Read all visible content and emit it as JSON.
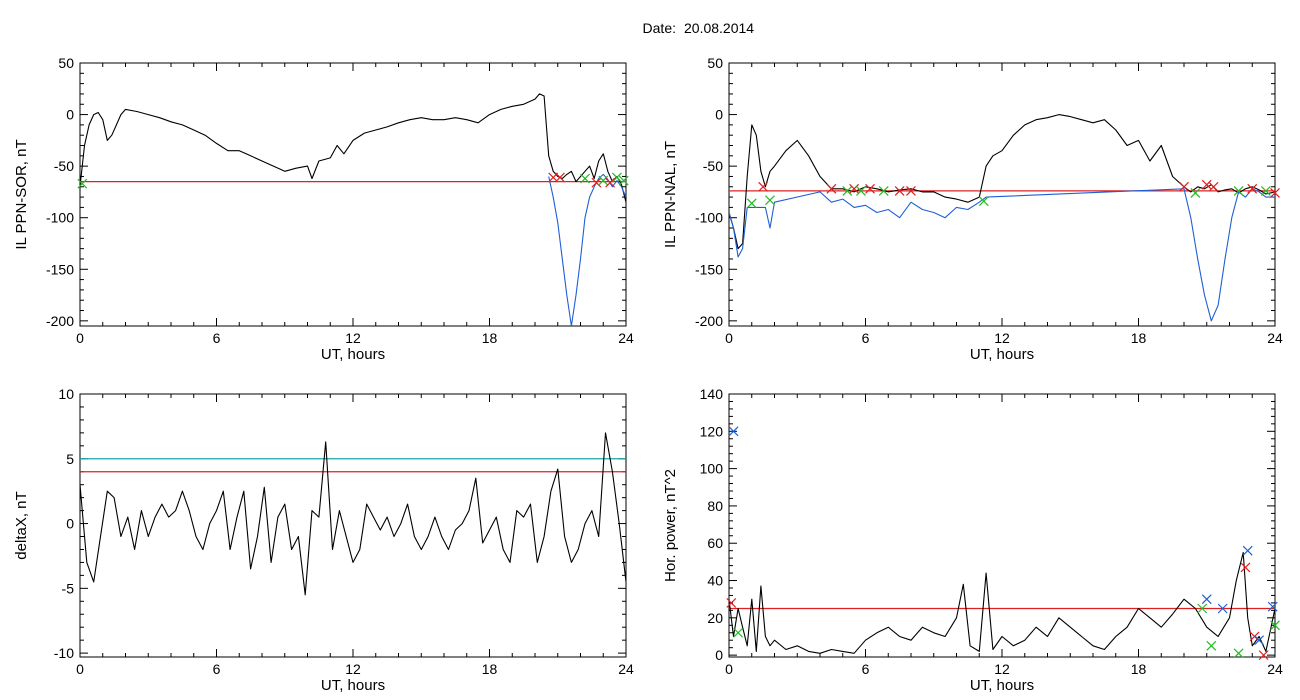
{
  "figure": {
    "date_label": "Date:",
    "date_value": "20.08.2014"
  },
  "colors": {
    "trace": "#000000",
    "blue_trace": "#1f5fd6",
    "threshold_red": "#e02020",
    "threshold_teal": "#1aa5a5",
    "marker_red": "#e02020",
    "marker_green": "#22bb22",
    "marker_blue": "#2255ee"
  },
  "chart_data": [
    {
      "id": "ppn-sor",
      "type": "line",
      "title": "",
      "xlabel": "UT, hours",
      "ylabel": "IL PPN-SOR, nT",
      "xlim": [
        0,
        24
      ],
      "ylim": [
        -205,
        50
      ],
      "xticks": [
        0,
        6,
        12,
        18,
        24
      ],
      "yticks": [
        50,
        0,
        -50,
        -100,
        -150,
        -200
      ],
      "series": [
        {
          "color": "black",
          "x": [
            0,
            0.2,
            0.4,
            0.6,
            0.8,
            1.0,
            1.2,
            1.4,
            1.6,
            1.8,
            2.0,
            2.5,
            3,
            3.5,
            4,
            4.5,
            5,
            5.5,
            6,
            6.5,
            7,
            7.5,
            8,
            8.5,
            9,
            9.5,
            10,
            10.2,
            10.5,
            11,
            11.3,
            11.6,
            12,
            12.5,
            13,
            13.5,
            14,
            14.5,
            15,
            15.5,
            16,
            16.5,
            17,
            17.5,
            18,
            18.5,
            19,
            19.5,
            20,
            20.2,
            20.4,
            20.6,
            20.8,
            21.0,
            21.2,
            21.4,
            21.6,
            21.8,
            22.0,
            22.2,
            22.4,
            22.6,
            22.8,
            23.0,
            23.2,
            23.4,
            23.6,
            23.8,
            24.0
          ],
          "y": [
            -70,
            -30,
            -10,
            0,
            2,
            -5,
            -25,
            -20,
            -10,
            0,
            5,
            3,
            0,
            -3,
            -7,
            -10,
            -15,
            -20,
            -28,
            -35,
            -35,
            -40,
            -45,
            -50,
            -55,
            -52,
            -50,
            -62,
            -45,
            -42,
            -30,
            -38,
            -25,
            -18,
            -15,
            -12,
            -8,
            -5,
            -3,
            -5,
            -5,
            -3,
            -5,
            -8,
            0,
            5,
            8,
            10,
            15,
            20,
            18,
            -40,
            -55,
            -60,
            -62,
            -58,
            -55,
            -65,
            -60,
            -55,
            -50,
            -62,
            -45,
            -38,
            -55,
            -65,
            -60,
            -68,
            -85
          ]
        },
        {
          "color": "blue",
          "x": [
            20.6,
            20.8,
            21.0,
            21.2,
            21.4,
            21.6,
            21.8,
            22.0,
            22.2,
            22.4,
            22.6,
            22.8,
            23.0,
            23.2,
            23.4,
            23.6,
            23.8,
            24.0
          ],
          "y": [
            -60,
            -80,
            -105,
            -140,
            -175,
            -205,
            -175,
            -140,
            -100,
            -80,
            -70,
            -62,
            -58,
            -63,
            -70,
            -64,
            -70,
            -80
          ]
        }
      ],
      "thresholds": [
        {
          "y": -65,
          "color": "red"
        }
      ],
      "markers": [
        {
          "x": 0.1,
          "y": -67,
          "color": "green"
        },
        {
          "x": 20.8,
          "y": -61,
          "color": "red"
        },
        {
          "x": 21.1,
          "y": -61,
          "color": "red"
        },
        {
          "x": 22.2,
          "y": -62,
          "color": "green"
        },
        {
          "x": 22.7,
          "y": -66,
          "color": "red"
        },
        {
          "x": 23.0,
          "y": -64,
          "color": "green"
        },
        {
          "x": 23.3,
          "y": -66,
          "color": "red"
        },
        {
          "x": 23.6,
          "y": -61,
          "color": "green"
        },
        {
          "x": 23.9,
          "y": -64,
          "color": "green"
        }
      ]
    },
    {
      "id": "ppn-nal",
      "type": "line",
      "title": "",
      "xlabel": "UT, hours",
      "ylabel": "IL PPN-NAL, nT",
      "xlim": [
        0,
        24
      ],
      "ylim": [
        -205,
        50
      ],
      "xticks": [
        0,
        6,
        12,
        18,
        24
      ],
      "yticks": [
        50,
        0,
        -50,
        -100,
        -150,
        -200
      ],
      "series": [
        {
          "color": "black",
          "x": [
            0,
            0.2,
            0.4,
            0.6,
            0.8,
            1.0,
            1.2,
            1.4,
            1.6,
            1.8,
            2.0,
            2.5,
            3.0,
            3.5,
            4.0,
            4.5,
            5.0,
            5.5,
            6.0,
            6.5,
            7.0,
            7.5,
            8.0,
            8.5,
            9.0,
            9.5,
            10.0,
            10.5,
            11.0,
            11.3,
            11.6,
            12.0,
            12.5,
            13.0,
            13.5,
            14.0,
            14.5,
            15.0,
            15.5,
            16.0,
            16.5,
            17.0,
            17.5,
            18.0,
            18.5,
            19.0,
            19.5,
            20.0,
            20.3,
            20.6,
            20.9,
            21.2,
            21.5,
            21.8,
            22.1,
            22.4,
            22.7,
            23.0,
            23.3,
            23.6,
            24.0
          ],
          "y": [
            -95,
            -110,
            -130,
            -125,
            -60,
            -10,
            -20,
            -55,
            -70,
            -55,
            -50,
            -35,
            -25,
            -40,
            -60,
            -72,
            -72,
            -75,
            -70,
            -72,
            -75,
            -73,
            -72,
            -75,
            -75,
            -80,
            -82,
            -85,
            -80,
            -50,
            -40,
            -35,
            -20,
            -10,
            -5,
            -3,
            0,
            -2,
            -5,
            -8,
            -5,
            -15,
            -30,
            -25,
            -45,
            -30,
            -60,
            -70,
            -75,
            -70,
            -72,
            -68,
            -75,
            -73,
            -72,
            -76,
            -72,
            -70,
            -73,
            -77,
            -75
          ]
        },
        {
          "color": "blue",
          "x": [
            0,
            0.2,
            0.4,
            0.6,
            0.8,
            1.6,
            1.8,
            2.0,
            4.0,
            4.5,
            5.0,
            5.5,
            6.0,
            6.5,
            7.0,
            7.5,
            8.0,
            8.5,
            9.0,
            9.5,
            10.0,
            10.5,
            11.0,
            11.3,
            20.0,
            20.3,
            20.6,
            20.9,
            21.2,
            21.5,
            21.8,
            22.1,
            22.4,
            22.7,
            23.0,
            23.3,
            23.6,
            24.0
          ],
          "y": [
            -95,
            -110,
            -138,
            -130,
            -90,
            -90,
            -110,
            -85,
            -75,
            -85,
            -82,
            -90,
            -88,
            -95,
            -92,
            -100,
            -85,
            -92,
            -95,
            -100,
            -90,
            -92,
            -85,
            -80,
            -72,
            -100,
            -140,
            -175,
            -200,
            -185,
            -140,
            -100,
            -75,
            -80,
            -72,
            -75,
            -80,
            -80
          ]
        }
      ],
      "thresholds": [
        {
          "y": -74,
          "color": "red"
        }
      ],
      "markers": [
        {
          "x": 1.0,
          "y": -86,
          "color": "green"
        },
        {
          "x": 1.5,
          "y": -70,
          "color": "red"
        },
        {
          "x": 1.8,
          "y": -83,
          "color": "green"
        },
        {
          "x": 4.5,
          "y": -72,
          "color": "red"
        },
        {
          "x": 5.2,
          "y": -74,
          "color": "green"
        },
        {
          "x": 5.5,
          "y": -72,
          "color": "red"
        },
        {
          "x": 5.8,
          "y": -74,
          "color": "green"
        },
        {
          "x": 6.2,
          "y": -72,
          "color": "red"
        },
        {
          "x": 6.8,
          "y": -74,
          "color": "green"
        },
        {
          "x": 7.5,
          "y": -74,
          "color": "red"
        },
        {
          "x": 8.0,
          "y": -74,
          "color": "red"
        },
        {
          "x": 11.2,
          "y": -84,
          "color": "green"
        },
        {
          "x": 20.0,
          "y": -70,
          "color": "red"
        },
        {
          "x": 20.5,
          "y": -76,
          "color": "green"
        },
        {
          "x": 21.0,
          "y": -68,
          "color": "red"
        },
        {
          "x": 21.3,
          "y": -70,
          "color": "red"
        },
        {
          "x": 22.4,
          "y": -74,
          "color": "green"
        },
        {
          "x": 23.0,
          "y": -72,
          "color": "red"
        },
        {
          "x": 23.6,
          "y": -74,
          "color": "green"
        },
        {
          "x": 24.0,
          "y": -76,
          "color": "red"
        }
      ]
    },
    {
      "id": "deltax",
      "type": "line",
      "title": "",
      "xlabel": "UT, hours",
      "ylabel": "deltaX, nT",
      "xlim": [
        0,
        24
      ],
      "ylim": [
        -10.3,
        10
      ],
      "xticks": [
        0,
        6,
        12,
        18,
        24
      ],
      "yticks": [
        10,
        5,
        0,
        -5,
        -10
      ],
      "series": [
        {
          "color": "black",
          "x": [
            0,
            0.3,
            0.6,
            0.9,
            1.2,
            1.5,
            1.8,
            2.1,
            2.4,
            2.7,
            3.0,
            3.3,
            3.6,
            3.9,
            4.2,
            4.5,
            4.8,
            5.1,
            5.4,
            5.7,
            6.0,
            6.3,
            6.6,
            6.9,
            7.2,
            7.5,
            7.8,
            8.1,
            8.4,
            8.7,
            9.0,
            9.3,
            9.6,
            9.9,
            10.2,
            10.5,
            10.8,
            11.1,
            11.4,
            11.7,
            12.0,
            12.3,
            12.6,
            12.9,
            13.2,
            13.5,
            13.8,
            14.1,
            14.4,
            14.7,
            15.0,
            15.3,
            15.6,
            15.9,
            16.2,
            16.5,
            16.8,
            17.1,
            17.4,
            17.7,
            18.0,
            18.3,
            18.6,
            18.9,
            19.2,
            19.5,
            19.8,
            20.1,
            20.4,
            20.7,
            21.0,
            21.3,
            21.6,
            21.9,
            22.2,
            22.5,
            22.8,
            23.1,
            23.4,
            23.7,
            24.0
          ],
          "y": [
            3,
            -3,
            -4.5,
            -1,
            2.5,
            2,
            -1,
            0.5,
            -2,
            1,
            -1,
            0.5,
            1.5,
            0.5,
            1,
            2.5,
            1,
            -1,
            -2,
            0,
            1,
            2.5,
            -2,
            0.5,
            2.5,
            -3.5,
            -1,
            2.8,
            -3,
            0.5,
            1.5,
            -2,
            -1,
            -5.5,
            1,
            0.5,
            6.3,
            -2,
            1,
            -1,
            -3,
            -2,
            1.5,
            0.5,
            -0.5,
            0.5,
            -1,
            0,
            1.5,
            -1,
            -2,
            -1,
            0.5,
            -1,
            -2,
            -0.5,
            0,
            1,
            3.5,
            -1.5,
            -0.5,
            0.5,
            -2,
            -3,
            1,
            0.5,
            1.5,
            -3,
            -1,
            2.5,
            4.2,
            -1,
            -3,
            -2,
            0,
            1,
            -1,
            7,
            4,
            0,
            -4.5
          ]
        }
      ],
      "thresholds": [
        {
          "y": 5,
          "color": "teal"
        },
        {
          "y": 4,
          "color": "red"
        }
      ],
      "markers": []
    },
    {
      "id": "hor-power",
      "type": "line",
      "title": "",
      "xlabel": "UT, hours",
      "ylabel": "Hor. power, nT^2",
      "xlim": [
        0,
        24
      ],
      "ylim": [
        -1,
        140
      ],
      "xticks": [
        0,
        6,
        12,
        18,
        24
      ],
      "yticks": [
        140,
        120,
        100,
        80,
        60,
        40,
        20,
        0
      ],
      "series": [
        {
          "color": "black",
          "x": [
            0,
            0.2,
            0.4,
            0.6,
            0.8,
            1.0,
            1.2,
            1.4,
            1.6,
            1.8,
            2.0,
            2.5,
            3.0,
            3.5,
            4.0,
            4.5,
            5.0,
            5.5,
            6.0,
            6.5,
            7.0,
            7.5,
            8.0,
            8.5,
            9.0,
            9.5,
            10.0,
            10.3,
            10.6,
            11.0,
            11.3,
            11.6,
            12.0,
            12.5,
            13.0,
            13.5,
            14.0,
            14.5,
            15.0,
            15.5,
            16.0,
            16.5,
            17.0,
            17.5,
            18.0,
            18.5,
            19.0,
            19.5,
            20.0,
            20.5,
            21.0,
            21.5,
            22.0,
            22.3,
            22.6,
            22.8,
            23.0,
            23.3,
            23.6,
            24.0
          ],
          "y": [
            30,
            10,
            25,
            15,
            5,
            30,
            2,
            37,
            10,
            5,
            8,
            3,
            5,
            2,
            1,
            3,
            2,
            1,
            8,
            12,
            15,
            10,
            8,
            15,
            12,
            10,
            20,
            38,
            5,
            2,
            44,
            3,
            10,
            5,
            8,
            15,
            10,
            20,
            15,
            10,
            5,
            3,
            10,
            15,
            25,
            20,
            15,
            22,
            30,
            25,
            15,
            10,
            20,
            40,
            55,
            20,
            5,
            10,
            2,
            25
          ]
        }
      ],
      "thresholds": [
        {
          "y": 25,
          "color": "red"
        }
      ],
      "markers": [
        {
          "x": 0.1,
          "y": 28,
          "color": "red"
        },
        {
          "x": 0.2,
          "y": 120,
          "color": "blue"
        },
        {
          "x": 0.4,
          "y": 12,
          "color": "green"
        },
        {
          "x": 20.8,
          "y": 25,
          "color": "green"
        },
        {
          "x": 21.0,
          "y": 30,
          "color": "blue"
        },
        {
          "x": 21.2,
          "y": 5,
          "color": "green"
        },
        {
          "x": 21.7,
          "y": 25,
          "color": "blue"
        },
        {
          "x": 22.4,
          "y": 1,
          "color": "green"
        },
        {
          "x": 22.7,
          "y": 47,
          "color": "red"
        },
        {
          "x": 22.8,
          "y": 56,
          "color": "blue"
        },
        {
          "x": 23.1,
          "y": 10,
          "color": "red"
        },
        {
          "x": 23.3,
          "y": 8,
          "color": "blue"
        },
        {
          "x": 23.5,
          "y": 0,
          "color": "red"
        },
        {
          "x": 23.9,
          "y": 26,
          "color": "blue"
        },
        {
          "x": 24.0,
          "y": 16,
          "color": "green"
        }
      ]
    }
  ]
}
